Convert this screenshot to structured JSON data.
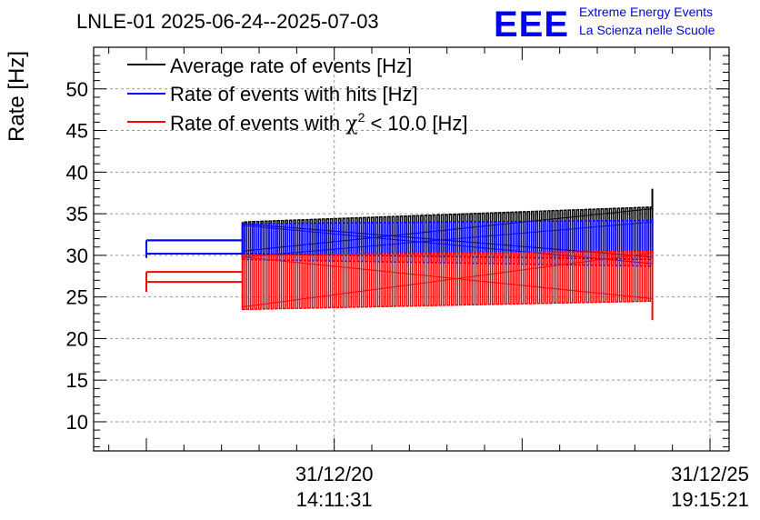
{
  "chart_data": {
    "type": "line",
    "title": "LNLE-01 2025-06-24--2025-07-03",
    "ylabel": "Rate [Hz]",
    "xlabel": "",
    "ylim": [
      6.5,
      55
    ],
    "grid": true,
    "legend_position": "top-left",
    "x_ticks": [
      {
        "date": "31/12/20",
        "time": "14:11:31",
        "pos": 0.3333
      },
      {
        "date": "31/12/25",
        "time": "19:15:21",
        "pos": 1.0
      }
    ],
    "y_ticks": [
      10,
      15,
      20,
      25,
      30,
      35,
      40,
      45,
      50
    ],
    "legend": [
      {
        "label": "Average rate of events [Hz]",
        "color": "#000000"
      },
      {
        "label": "Rate of events with hits [Hz]",
        "color": "#0000ff"
      },
      {
        "label_prefix": "Rate of events with ",
        "label_symbol": "χ",
        "label_sup": "2",
        "label_suffix": " < 10.0 [Hz]",
        "color": "#ff0000"
      }
    ],
    "series": [
      {
        "name": "Average rate of events [Hz]",
        "color": "#000000",
        "x_start": 0.1705,
        "x_end": 0.8977,
        "lower": [
          30.2,
          29.5
        ],
        "upper": [
          34.0,
          35.8
        ],
        "pre_segments": [
          [
            0.0,
            0.1705,
            31.8
          ],
          [
            0.0,
            0.1705,
            30.2
          ]
        ],
        "end_spike": [
          29.5,
          38.0
        ]
      },
      {
        "name": "Rate of events with hits [Hz]",
        "color": "#0000ff",
        "x_start": 0.1705,
        "x_end": 0.8977,
        "lower": [
          29.5,
          28.7
        ],
        "upper": [
          33.8,
          34.2
        ],
        "pre_segments": [
          [
            0.0,
            0.1705,
            31.8
          ],
          [
            0.0,
            0.1705,
            30.2
          ]
        ],
        "end_spike": [
          29.0,
          34.5
        ]
      },
      {
        "name": "Rate of events with chi2 < 10.0 [Hz]",
        "color": "#ff0000",
        "x_start": 0.1705,
        "x_end": 0.8977,
        "lower": [
          23.5,
          24.5
        ],
        "upper": [
          30.0,
          30.5
        ],
        "pre_segments": [
          [
            0.0,
            0.1705,
            28.0
          ],
          [
            0.0,
            0.1705,
            26.8
          ]
        ],
        "end_spike": [
          22.2,
          30.5
        ]
      }
    ]
  },
  "logo": {
    "mark": "EEE",
    "line1": "Extreme Energy Events",
    "line2": "La Scienza nelle Scuole",
    "color": "#0000ee"
  }
}
